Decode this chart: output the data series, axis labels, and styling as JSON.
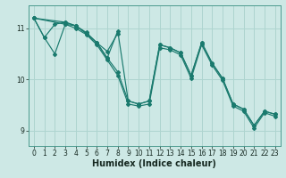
{
  "background_color": "#cde8e5",
  "grid_color": "#aed4cf",
  "line_color": "#1a7a6e",
  "xlabel": "Humidex (Indice chaleur)",
  "xlim": [
    -0.5,
    23.5
  ],
  "ylim": [
    8.7,
    11.45
  ],
  "yticks": [
    9,
    10,
    11
  ],
  "xticks": [
    0,
    1,
    2,
    3,
    4,
    5,
    6,
    7,
    8,
    9,
    10,
    11,
    12,
    13,
    14,
    15,
    16,
    17,
    18,
    19,
    20,
    21,
    22,
    23
  ],
  "series": [
    {
      "x": [
        0,
        1,
        2,
        3,
        4,
        5,
        6,
        7,
        8
      ],
      "y": [
        11.2,
        10.82,
        11.08,
        11.12,
        11.05,
        10.9,
        10.72,
        10.55,
        10.9
      ]
    },
    {
      "x": [
        0,
        3,
        4,
        5,
        6,
        7,
        8,
        9,
        10,
        11,
        12,
        13,
        14,
        15,
        16,
        17,
        18,
        19,
        20,
        21,
        22,
        23
      ],
      "y": [
        11.2,
        11.12,
        11.05,
        10.92,
        10.72,
        10.42,
        10.15,
        9.58,
        9.52,
        9.58,
        10.68,
        10.62,
        10.52,
        10.08,
        10.72,
        10.32,
        10.02,
        9.52,
        9.42,
        9.1,
        9.38,
        9.32
      ]
    },
    {
      "x": [
        0,
        3,
        4,
        5,
        6,
        7,
        8,
        9,
        10,
        11,
        12,
        13,
        14,
        15,
        16,
        17,
        18,
        19,
        20,
        21,
        22,
        23
      ],
      "y": [
        11.2,
        11.08,
        11.0,
        10.88,
        10.68,
        10.38,
        10.08,
        9.52,
        9.48,
        9.52,
        10.62,
        10.58,
        10.48,
        10.02,
        10.68,
        10.28,
        9.98,
        9.48,
        9.38,
        9.05,
        9.35,
        9.28
      ]
    },
    {
      "x": [
        0,
        1,
        2,
        3,
        4,
        5,
        6,
        7,
        8,
        9,
        10,
        11,
        12,
        13,
        14,
        15,
        16,
        17,
        18,
        19,
        20,
        21,
        22,
        23
      ],
      "y": [
        11.2,
        10.82,
        10.5,
        11.08,
        11.05,
        10.9,
        10.72,
        10.42,
        10.95,
        9.58,
        9.52,
        9.58,
        10.68,
        10.62,
        10.52,
        10.08,
        10.72,
        10.32,
        10.02,
        9.52,
        9.42,
        9.1,
        9.38,
        9.32
      ]
    }
  ]
}
